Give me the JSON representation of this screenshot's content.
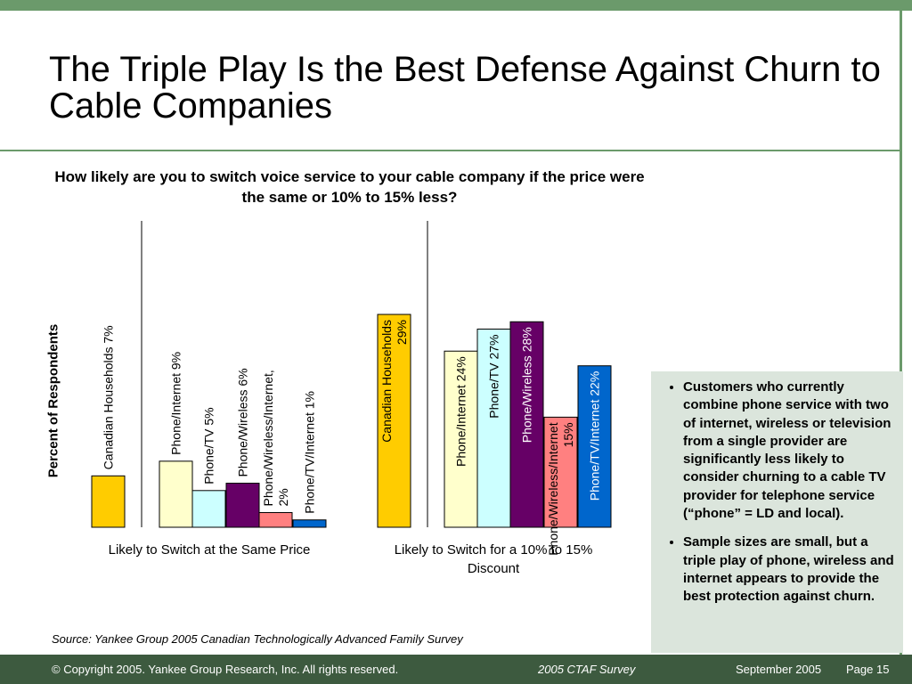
{
  "slide": {
    "title": "The Triple Play Is the Best Defense Against Churn to Cable Companies",
    "question": "How likely are you to switch voice service to your cable company if the price were the same or 10% to 15% less?",
    "ylabel": "Percent of Respondents",
    "source": "Source: Yankee Group 2005 Canadian Technologically Advanced Family Survey"
  },
  "notes": [
    "Customers who currently combine phone service with two of internet, wireless or television from a single provider are significantly less likely to consider churning to a cable TV provider for telephone service (“phone” = LD and local).",
    "Sample sizes are small, but a triple play of phone, wireless and internet appears to provide the best protection against churn."
  ],
  "footer": {
    "copyright": "© Copyright 2005. Yankee Group Research, Inc.  All rights reserved.",
    "survey": "2005 CTAF Survey",
    "date": "September 2005",
    "page": "Page 15"
  },
  "colors": {
    "accent_green": "#6b9a6b",
    "footer_green": "#3d5a3f",
    "notes_bg": "#dbe5dc"
  },
  "chart_data": {
    "type": "bar",
    "title": "How likely are you to switch voice service to your cable company if the price were the same or 10% to 15% less?",
    "ylabel": "Percent of Respondents",
    "ylim": [
      0,
      29
    ],
    "grid": false,
    "groups": [
      {
        "name": "Likely to Switch at the Same Price",
        "categories": [
          "Canadian Households",
          "Phone/Internet",
          "Phone/TV",
          "Phone/Wireless",
          "Phone/Wireless/Internet",
          "Phone/TV/Internet"
        ],
        "values": [
          7,
          9,
          5,
          6,
          2,
          1
        ],
        "labels": [
          [
            "Canadian Households 7%"
          ],
          [
            "Phone/Internet 9%"
          ],
          [
            "Phone/TV 5%"
          ],
          [
            "Phone/Wireless 6%"
          ],
          [
            "Phone/Wireless/Internet,",
            "2%"
          ],
          [
            "Phone/TV/Internet 1%"
          ]
        ]
      },
      {
        "name": "Likely to Switch for a 10% to 15% Discount",
        "categories": [
          "Canadian Households",
          "Phone/Internet",
          "Phone/TV",
          "Phone/Wireless",
          "Phone/Wireless/Internet",
          "Phone/TV/Internet"
        ],
        "values": [
          29,
          24,
          27,
          28,
          15,
          22
        ],
        "labels": [
          [
            "Canadian Households",
            "29%"
          ],
          [
            "Phone/Internet 24%"
          ],
          [
            "Phone/TV 27%"
          ],
          [
            "Phone/Wireless 28%"
          ],
          [
            "Phone/Wireless/Internet",
            "15%"
          ],
          [
            "Phone/TV/Internet 22%"
          ]
        ]
      }
    ],
    "series_colors": [
      "#ffcc00",
      "#ffffcc",
      "#ccffff",
      "#660066",
      "#ff8080",
      "#0066cc"
    ]
  }
}
